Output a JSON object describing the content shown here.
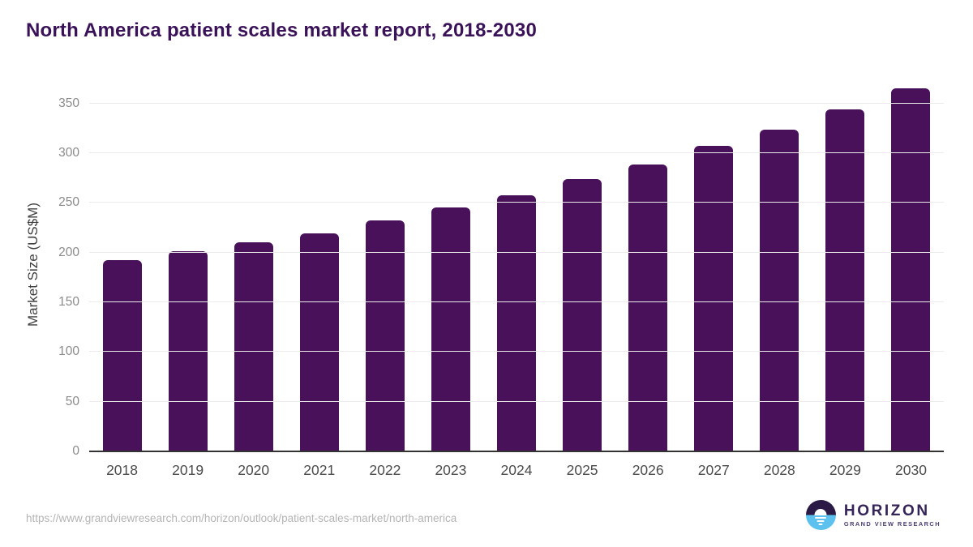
{
  "chart_data": {
    "type": "bar",
    "title": "North America patient scales market report, 2018-2030",
    "categories": [
      "2018",
      "2019",
      "2020",
      "2021",
      "2022",
      "2023",
      "2024",
      "2025",
      "2026",
      "2027",
      "2028",
      "2029",
      "2030"
    ],
    "values": [
      192,
      201,
      210,
      219,
      232,
      245,
      258,
      274,
      289,
      307,
      324,
      344,
      365
    ],
    "xlabel": "",
    "ylabel": "Market Size (US$M)",
    "ylim": [
      0,
      375
    ],
    "yticks": [
      0,
      50,
      100,
      150,
      200,
      250,
      300,
      350
    ],
    "grid": true,
    "legend": "none",
    "bar_color": "#48115a"
  },
  "colors": {
    "title_text": "#3a1258",
    "bar": "#48115a",
    "gridline": "#ebebeb",
    "axis_line": "#333333",
    "logo_purple": "#2a1a45",
    "logo_blue": "#5cc1ee"
  },
  "footer": {
    "source_url": "https://www.grandviewresearch.com/horizon/outlook/patient-scales-market/north-america",
    "logo": {
      "name": "HORIZON",
      "subtitle": "GRAND VIEW RESEARCH"
    }
  }
}
